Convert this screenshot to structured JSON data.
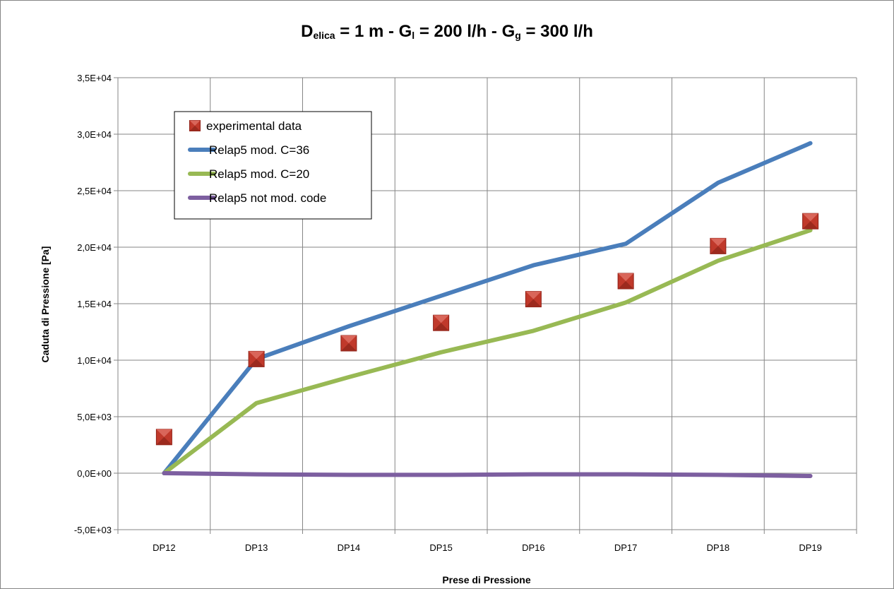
{
  "chart_data": {
    "type": "line",
    "title": {
      "parts": [
        {
          "text": "D",
          "sub": false
        },
        {
          "text": "elica",
          "sub": true
        },
        {
          "text": " = 1 m - G",
          "sub": false
        },
        {
          "text": "l",
          "sub": true
        },
        {
          "text": " = 200 l/h - G",
          "sub": false
        },
        {
          "text": "g",
          "sub": true
        },
        {
          "text": " = 300 l/h",
          "sub": false
        }
      ]
    },
    "xlabel": "Prese di Pressione",
    "ylabel": "Caduta di Pressione [Pa]",
    "categories": [
      "DP12",
      "DP13",
      "DP14",
      "DP15",
      "DP16",
      "DP17",
      "DP18",
      "DP19"
    ],
    "ylim": [
      -5000,
      35000
    ],
    "yticks": [
      -5000,
      0,
      5000,
      10000,
      15000,
      20000,
      25000,
      30000,
      35000
    ],
    "ytick_labels": [
      "-5,0E+03",
      "0,0E+00",
      "5,0E+03",
      "1,0E+04",
      "1,5E+04",
      "2,0E+04",
      "2,5E+04",
      "3,0E+04",
      "3,5E+04"
    ],
    "grid": true,
    "legend_position": "upper-left",
    "series": [
      {
        "name": "experimental data",
        "kind": "marker",
        "color": "#c0392b",
        "values": [
          3200,
          10100,
          11500,
          13300,
          15400,
          17000,
          20100,
          22300
        ]
      },
      {
        "name": "Relap5 mod. C=36",
        "kind": "line",
        "color": "#4a7ebb",
        "values": [
          0,
          10100,
          13000,
          15700,
          18400,
          20300,
          25700,
          29200
        ]
      },
      {
        "name": "Relap5 mod. C=20",
        "kind": "line",
        "color": "#98b954",
        "values": [
          0,
          6200,
          8500,
          10700,
          12600,
          15100,
          18800,
          21500
        ]
      },
      {
        "name": "Relap5 not mod. code",
        "kind": "line",
        "color": "#7d5fa0",
        "values": [
          0,
          -100,
          -150,
          -150,
          -100,
          -100,
          -150,
          -250
        ]
      }
    ]
  }
}
